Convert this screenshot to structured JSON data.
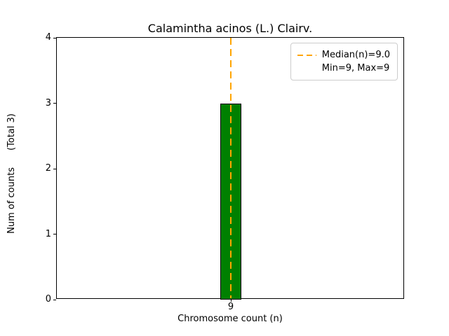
{
  "chart_data": {
    "type": "bar",
    "title": "Calamintha acinos (L.) Clairv.",
    "xlabel": "Chromosome count (n)",
    "ylabel": "Num of counts",
    "ylabel_note": "(Total 3)",
    "categories": [
      "9"
    ],
    "values": [
      3
    ],
    "ylim": [
      0,
      4
    ],
    "yticks": [
      0,
      1,
      2,
      3,
      4
    ],
    "grid": false,
    "bar_color": "#008000",
    "bar_edge_color": "#000000",
    "median_line": {
      "x": 9.0,
      "color": "#FFA500",
      "style": "dashed"
    },
    "legend": {
      "position": "top-right",
      "entries": [
        {
          "label": "Median(n)=9.0",
          "sample": "dashed-line",
          "color": "#FFA500"
        },
        {
          "label": "Min=9, Max=9",
          "sample": "none"
        }
      ]
    }
  }
}
